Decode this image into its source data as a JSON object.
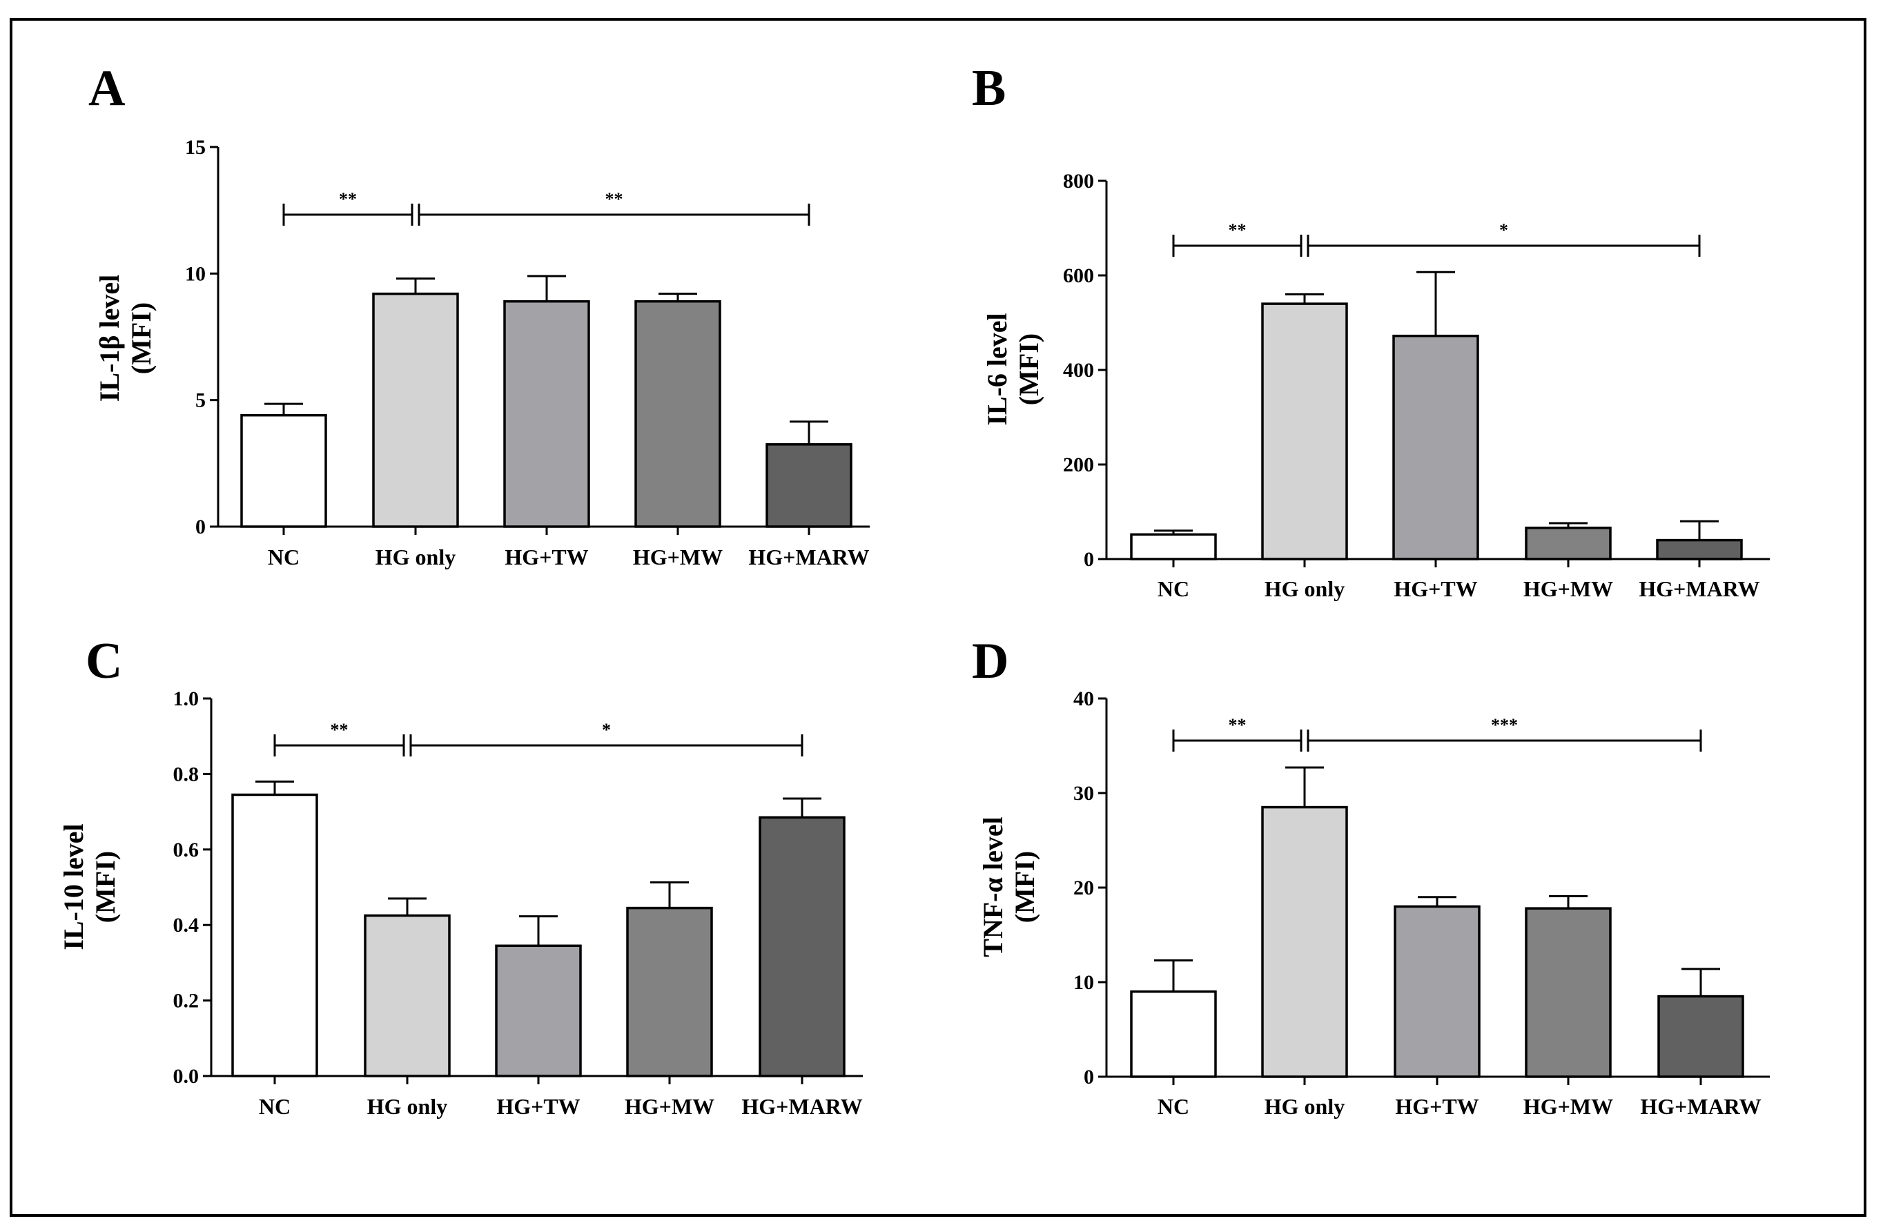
{
  "chart_data": [
    {
      "panel": "A",
      "type": "bar",
      "categories": [
        "NC",
        "HG only",
        "HG+TW",
        "HG+MW",
        "HG+MARW"
      ],
      "values": [
        4.4,
        9.2,
        8.9,
        8.9,
        3.25
      ],
      "errors": [
        0.45,
        0.6,
        1.0,
        0.3,
        0.9
      ],
      "ylabel": [
        "IL-1β level",
        "(MFI)"
      ],
      "ylim": [
        0,
        15
      ],
      "ticks": [
        "0",
        "5",
        "10",
        "15"
      ],
      "tick_values": [
        0,
        5,
        10,
        15
      ],
      "significance": [
        {
          "from": 0,
          "to": 1,
          "label": "**",
          "y": 12.5
        },
        {
          "from": 1,
          "to": 4,
          "label": "**",
          "y": 12.5
        }
      ]
    },
    {
      "panel": "B",
      "type": "bar",
      "categories": [
        "NC",
        "HG only",
        "HG+TW",
        "HG+MW",
        "HG+MARW"
      ],
      "values": [
        52,
        540,
        472,
        66,
        40
      ],
      "errors": [
        8,
        20,
        135,
        10,
        40
      ],
      "ylabel": [
        "IL-6 level",
        "(MFI)"
      ],
      "ylim": [
        0,
        800
      ],
      "ticks": [
        "0",
        "200",
        "400",
        "600",
        "800"
      ],
      "tick_values": [
        0,
        200,
        400,
        600,
        800
      ],
      "significance": [
        {
          "from": 0,
          "to": 1,
          "label": "**",
          "y": 665
        },
        {
          "from": 1,
          "to": 4,
          "label": "*",
          "y": 665
        }
      ]
    },
    {
      "panel": "C",
      "type": "bar",
      "categories": [
        "NC",
        "HG only",
        "HG+TW",
        "HG+MW",
        "HG+MARW"
      ],
      "values": [
        0.745,
        0.425,
        0.345,
        0.445,
        0.685
      ],
      "errors": [
        0.035,
        0.045,
        0.078,
        0.068,
        0.05
      ],
      "ylabel": [
        "IL-10 level",
        "(MFI)"
      ],
      "ylim": [
        0,
        1.0
      ],
      "ticks": [
        "0.0",
        "0.2",
        "0.4",
        "0.6",
        "0.8",
        "1.0"
      ],
      "tick_values": [
        0,
        0.2,
        0.4,
        0.6,
        0.8,
        1.0
      ],
      "significance": [
        {
          "from": 0,
          "to": 1,
          "label": "**",
          "y": 0.875
        },
        {
          "from": 1,
          "to": 4,
          "label": "*",
          "y": 0.875
        }
      ]
    },
    {
      "panel": "D",
      "type": "bar",
      "categories": [
        "NC",
        "HG only",
        "HG+TW",
        "HG+MW",
        "HG+MARW"
      ],
      "values": [
        9.0,
        28.5,
        18.0,
        17.8,
        8.5
      ],
      "errors": [
        3.3,
        4.2,
        1.0,
        1.3,
        2.9
      ],
      "ylabel": [
        "TNF-α level",
        "(MFI)"
      ],
      "ylim": [
        0,
        40
      ],
      "ticks": [
        "0",
        "10",
        "20",
        "30",
        "40"
      ],
      "tick_values": [
        0,
        10,
        20,
        30,
        40
      ],
      "significance": [
        {
          "from": 0,
          "to": 1,
          "label": "**",
          "y": 35.3
        },
        {
          "from": 1,
          "to": 4,
          "label": "***",
          "y": 35.3
        }
      ]
    }
  ],
  "colors": {
    "bar_fills": [
      "#ffffff",
      "#d3d3d3",
      "#a3a3a7",
      "#828282",
      "#616161"
    ],
    "stroke": "#000000"
  }
}
